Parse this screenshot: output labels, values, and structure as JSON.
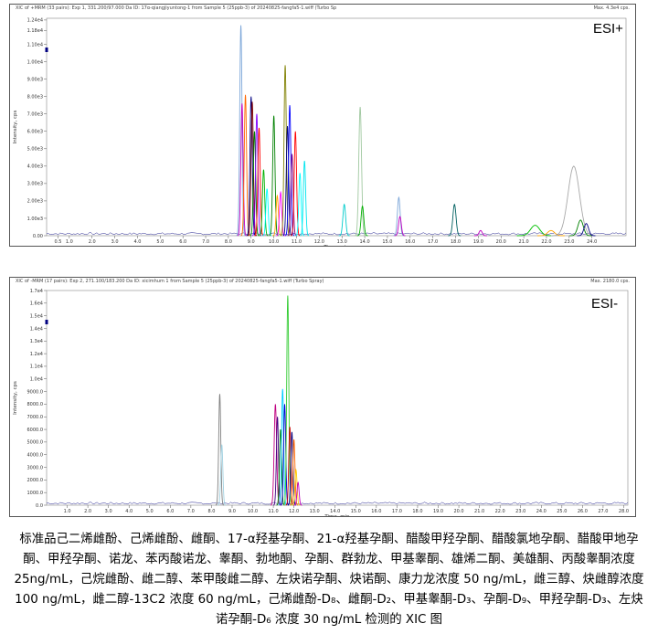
{
  "chart_data": [
    {
      "type": "line",
      "mode_label": "ESI+",
      "header_left": "XIC of +MRM (33 pairs): Exp 1, 331.200/97.000 Da ID: 17α-qiangjiyuntong-1 from Sample 5 (25ppb-3) of 20240825-fangfa5-1.wiff (Turbo Sp",
      "header_right": "Max. 4.3e4 cps.",
      "xlabel": "Time, min",
      "ylabel": "Intensity, cps",
      "xlim": [
        0,
        25.5
      ],
      "ylim": [
        0,
        12500.0
      ],
      "x_ticks": [
        "0.5",
        "1.0",
        "2.0",
        "3.0",
        "4.0",
        "5.0",
        "6.0",
        "7.0",
        "8.0",
        "9.0",
        "10.0",
        "11.0",
        "12.0",
        "13.0",
        "14.0",
        "15.0",
        "16.0",
        "17.0",
        "18.0",
        "19.0",
        "20.0",
        "21.0",
        "22.0",
        "23.0",
        "24.0"
      ],
      "y_ticks": [
        "0.00",
        "1.00e3",
        "2.00e3",
        "3.00e3",
        "4.00e3",
        "5.00e3",
        "6.00e3",
        "7.00e3",
        "8.00e3",
        "9.00e3",
        "1.00e4",
        "1.10e4",
        "1.18e4",
        "1.24e4"
      ],
      "peaks": [
        {
          "rt": 8.55,
          "height": 12100,
          "width": 0.05,
          "color": "#7da7d9"
        },
        {
          "rt": 8.6,
          "height": 7600,
          "width": 0.05,
          "color": "#c000c0"
        },
        {
          "rt": 8.75,
          "height": 8100,
          "width": 0.05,
          "color": "#ff6600"
        },
        {
          "rt": 9.0,
          "height": 8000,
          "width": 0.05,
          "color": "#000080"
        },
        {
          "rt": 9.05,
          "height": 7700,
          "width": 0.05,
          "color": "#800000"
        },
        {
          "rt": 9.15,
          "height": 6000,
          "width": 0.05,
          "color": "#008000"
        },
        {
          "rt": 9.25,
          "height": 7000,
          "width": 0.05,
          "color": "#8000ff"
        },
        {
          "rt": 9.35,
          "height": 6200,
          "width": 0.05,
          "color": "#ff0000"
        },
        {
          "rt": 9.55,
          "height": 3800,
          "width": 0.05,
          "color": "#00b000"
        },
        {
          "rt": 9.7,
          "height": 2700,
          "width": 0.05,
          "color": "#00ffff"
        },
        {
          "rt": 10.0,
          "height": 6900,
          "width": 0.05,
          "color": "#008000"
        },
        {
          "rt": 10.15,
          "height": 2300,
          "width": 0.05,
          "color": "#ffa500"
        },
        {
          "rt": 10.3,
          "height": 2500,
          "width": 0.05,
          "color": "#ff00ff"
        },
        {
          "rt": 10.5,
          "height": 9800,
          "width": 0.05,
          "color": "#808000"
        },
        {
          "rt": 10.6,
          "height": 6300,
          "width": 0.05,
          "color": "#000080"
        },
        {
          "rt": 10.7,
          "height": 7500,
          "width": 0.05,
          "color": "#0000ff"
        },
        {
          "rt": 10.8,
          "height": 4700,
          "width": 0.05,
          "color": "#800080"
        },
        {
          "rt": 10.95,
          "height": 6000,
          "width": 0.05,
          "color": "#ff0000"
        },
        {
          "rt": 11.15,
          "height": 3600,
          "width": 0.05,
          "color": "#00ffff"
        },
        {
          "rt": 11.35,
          "height": 4300,
          "width": 0.05,
          "color": "#00e5ee"
        },
        {
          "rt": 13.1,
          "height": 1800,
          "width": 0.06,
          "color": "#00cccc"
        },
        {
          "rt": 13.8,
          "height": 7400,
          "width": 0.06,
          "color": "#a0c8a0"
        },
        {
          "rt": 13.9,
          "height": 1700,
          "width": 0.06,
          "color": "#00b000"
        },
        {
          "rt": 15.5,
          "height": 2200,
          "width": 0.06,
          "color": "#7da7d9"
        },
        {
          "rt": 15.55,
          "height": 1100,
          "width": 0.06,
          "color": "#c000c0"
        },
        {
          "rt": 17.95,
          "height": 1800,
          "width": 0.07,
          "color": "#006060"
        },
        {
          "rt": 19.1,
          "height": 300,
          "width": 0.07,
          "color": "#c000c0"
        },
        {
          "rt": 21.5,
          "height": 600,
          "width": 0.2,
          "color": "#00c000"
        },
        {
          "rt": 22.2,
          "height": 300,
          "width": 0.15,
          "color": "#ffa500"
        },
        {
          "rt": 23.2,
          "height": 4000,
          "width": 0.25,
          "color": "#a8a8a8"
        },
        {
          "rt": 23.5,
          "height": 900,
          "width": 0.12,
          "color": "#008000"
        },
        {
          "rt": 23.75,
          "height": 700,
          "width": 0.1,
          "color": "#000080"
        }
      ]
    },
    {
      "type": "line",
      "mode_label": "ESI-",
      "header_left": "XIC of -MRM (17 pairs): Exp 2, 271.100/183.200 Da ID: xicimhum 1 from Sample 5 (25ppb-3) of 20240825-fangfa5-1.wiff (Turbo Spray)",
      "header_right": "Max. 2180.0 cps.",
      "xlabel": "Time, min",
      "ylabel": "Intensity, cps",
      "xlim": [
        0,
        28.2
      ],
      "ylim": [
        0,
        17000
      ],
      "x_ticks": [
        "1.0",
        "2.0",
        "3.0",
        "4.0",
        "5.0",
        "6.0",
        "7.0",
        "8.0",
        "9.0",
        "10.0",
        "11.0",
        "12.0",
        "13.0",
        "14.0",
        "15.0",
        "16.0",
        "17.0",
        "18.0",
        "19.0",
        "20.0",
        "21.0",
        "22.0",
        "23.0",
        "24.0",
        "25.0",
        "26.0",
        "27.0",
        "28.0"
      ],
      "y_ticks": [
        "0.0",
        "1000.0",
        "2000.0",
        "3000.0",
        "4000.0",
        "5000.0",
        "6000.0",
        "7000.0",
        "8000.0",
        "9000.0",
        "1.0e4",
        "1.1e4",
        "1.2e4",
        "1.3e4",
        "1.4e4",
        "1.5e4",
        "1.6e4",
        "1.7e4"
      ],
      "peaks": [
        {
          "rt": 8.4,
          "height": 8800,
          "width": 0.05,
          "color": "#808080"
        },
        {
          "rt": 8.5,
          "height": 4800,
          "width": 0.05,
          "color": "#a0d0e0"
        },
        {
          "rt": 11.1,
          "height": 8000,
          "width": 0.06,
          "color": "#c00080"
        },
        {
          "rt": 11.2,
          "height": 7000,
          "width": 0.05,
          "color": "#400080"
        },
        {
          "rt": 11.35,
          "height": 6000,
          "width": 0.05,
          "color": "#008000"
        },
        {
          "rt": 11.45,
          "height": 9200,
          "width": 0.05,
          "color": "#00ccff"
        },
        {
          "rt": 11.55,
          "height": 8000,
          "width": 0.05,
          "color": "#0000cc"
        },
        {
          "rt": 11.7,
          "height": 16600,
          "width": 0.05,
          "color": "#33cc33"
        },
        {
          "rt": 11.8,
          "height": 6200,
          "width": 0.05,
          "color": "#cc0000"
        },
        {
          "rt": 11.9,
          "height": 5800,
          "width": 0.05,
          "color": "#000080"
        },
        {
          "rt": 12.0,
          "height": 5200,
          "width": 0.05,
          "color": "#ff6600"
        },
        {
          "rt": 12.1,
          "height": 2800,
          "width": 0.05,
          "color": "#ffcc00"
        },
        {
          "rt": 12.2,
          "height": 1800,
          "width": 0.05,
          "color": "#c000c0"
        }
      ]
    }
  ],
  "caption": "标准品己二烯雌酚、己烯雌酚、雌酮、17-α羟基孕酮、21-α羟基孕酮、醋酸甲羟孕酮、醋酸氯地孕酮、醋酸甲地孕酮、甲羟孕酮、诺龙、苯丙酸诺龙、睾酮、勃地酮、孕酮、群勃龙、甲基睾酮、雄烯二酮、美雄酮、丙酸睾酮浓度 25ng/mL，己烷雌酚、雌二醇、苯甲酸雌二醇、左炔诺孕酮、炔诺酮、康力龙浓度 50 ng/mL，雌三醇、炔雌醇浓度 100 ng/mL，雌二醇-13C2 浓度 60 ng/mL，己烯雌酚-D₈、雌酮-D₂、甲基睾酮-D₃、孕酮-D₉、甲羟孕酮-D₃、左炔诺孕酮-D₆ 浓度 30 ng/mL 检测的 XIC 图"
}
